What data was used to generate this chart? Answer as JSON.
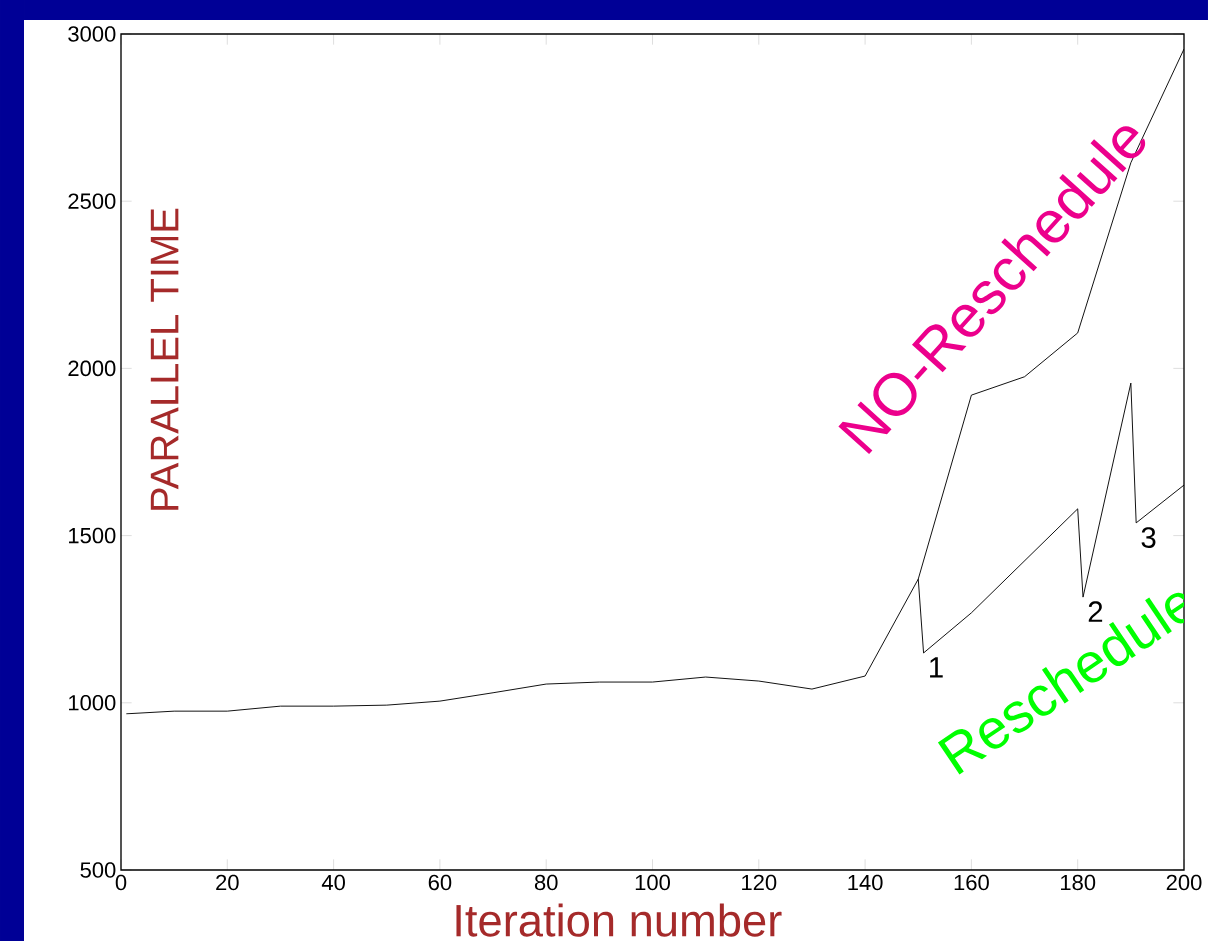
{
  "chart_data": {
    "type": "line",
    "xlabel": "Iteration number",
    "ylabel": "PARALLEL TIME",
    "xlim": [
      0,
      200
    ],
    "ylim": [
      500,
      3000
    ],
    "xticks": [
      0,
      20,
      40,
      60,
      80,
      100,
      120,
      140,
      160,
      180,
      200
    ],
    "yticks": [
      500,
      1000,
      1500,
      2000,
      2500,
      3000
    ],
    "grid": false,
    "marker": "none",
    "line_style": "solid",
    "series": [
      {
        "name": "NO-Reschedule",
        "color": "#000000",
        "x": [
          1,
          10,
          20,
          30,
          40,
          50,
          60,
          70,
          80,
          90,
          100,
          110,
          120,
          130,
          140,
          150,
          160,
          170,
          180,
          190,
          200
        ],
        "values": [
          967,
          975,
          975,
          990,
          990,
          993,
          1005,
          1030,
          1056,
          1062,
          1062,
          1077,
          1065,
          1041,
          1080,
          1370,
          1920,
          1975,
          2106,
          2615,
          2955
        ]
      },
      {
        "name": "Reschedule",
        "color": "#000000",
        "x": [
          150,
          151,
          160,
          180,
          181,
          190,
          191,
          200
        ],
        "values": [
          1370,
          1149,
          1269,
          1580,
          1316,
          1956,
          1538,
          1651
        ]
      }
    ],
    "annotations": [
      {
        "text": "1",
        "x": 151,
        "y": 1149
      },
      {
        "text": "2",
        "x": 181,
        "y": 1316
      },
      {
        "text": "3",
        "x": 191,
        "y": 1538
      }
    ]
  }
}
